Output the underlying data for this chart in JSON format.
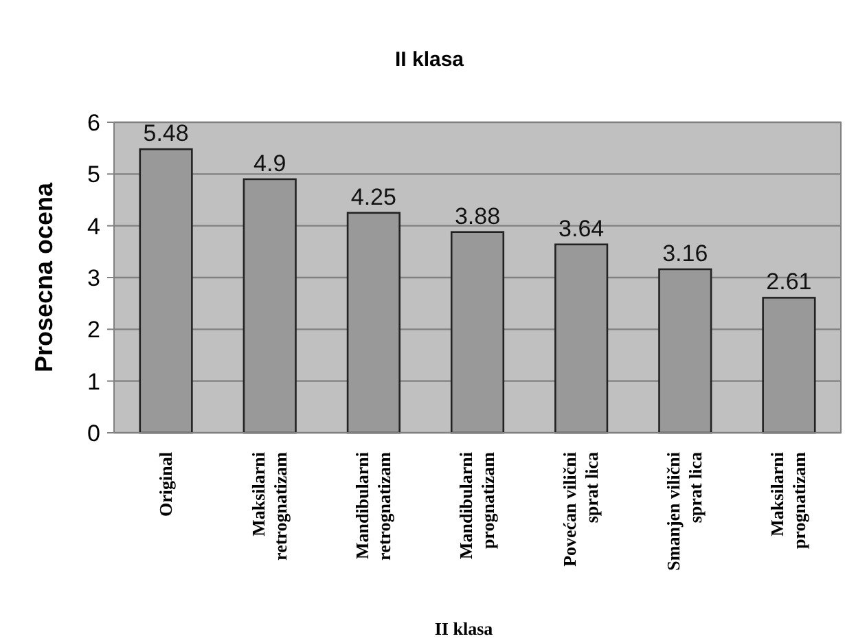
{
  "chart_data": {
    "type": "bar",
    "title": "II klasa",
    "xlabel": "II klasa",
    "ylabel": "Prosecna ocena",
    "categories": [
      "Original",
      "Maksilarni retrognatizam",
      "Mandibularni retrognatizam",
      "Mandibularni prognatizam",
      "Povećan vilični sprat lica",
      "Smanjen vilični sprat lica",
      "Maksilarni prognatizam"
    ],
    "values": [
      5.48,
      4.9,
      4.25,
      3.88,
      3.64,
      3.16,
      2.61
    ],
    "color": "#999999",
    "ylim": [
      0,
      6
    ],
    "yticks": [
      0,
      1,
      2,
      3,
      4,
      5,
      6
    ],
    "grid": "y",
    "data_labels": true
  }
}
